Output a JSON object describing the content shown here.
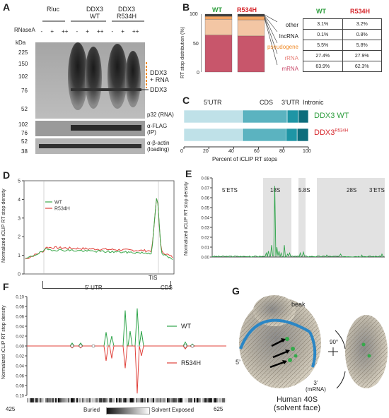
{
  "panels": {
    "A": "A",
    "B": "B",
    "C": "C",
    "D": "D",
    "E": "E",
    "F": "F",
    "G": "G"
  },
  "panelA": {
    "lanes": [
      "Rluc",
      "DDX3\nWT",
      "DDX3\nR534H"
    ],
    "lane_1": "Rluc",
    "lane_2a": "DDX3",
    "lane_2b": "WT",
    "lane_3a": "DDX3",
    "lane_3b": "R534H",
    "rnase_label": "RNaseA",
    "rnase_marks": [
      "-",
      "+",
      "++",
      "-",
      "+",
      "++",
      "-",
      "+",
      "++"
    ],
    "kda": "kDa",
    "markers_top": [
      "225",
      "150",
      "102",
      "76",
      "52"
    ],
    "markers_mid": [
      "102",
      "76"
    ],
    "markers_bot": [
      "52",
      "38"
    ],
    "right_labels": {
      "ddx3_rna_a": "DDX3",
      "ddx3_rna_b": "+ RNA",
      "ddx3": "DDX3",
      "p32": "p32 (RNA)",
      "flag_a": "α-FLAG",
      "flag_b": "(IP)",
      "actin_a": "α-β-actin",
      "actin_b": "(loading)"
    }
  },
  "panelB": {
    "ylabel": "RT stop distribution (%)",
    "wt": "WT",
    "mut": "R534H",
    "yticks": [
      "100",
      "50",
      "0"
    ],
    "categories": [
      "other",
      "lncRNA",
      "pseudogene",
      "rRNA",
      "mRNA"
    ],
    "table_header": [
      "WT",
      "R534H"
    ],
    "rows": [
      {
        "label": "other",
        "wt": "3.1%",
        "mut": "3.2%"
      },
      {
        "label": "lncRNA",
        "wt": "0.1%",
        "mut": "0.8%"
      },
      {
        "label": "pseudogene",
        "wt": "5.5%",
        "mut": "5.8%"
      },
      {
        "label": "rRNA",
        "wt": "27.4%",
        "mut": "27.9%"
      },
      {
        "label": "mRNA",
        "wt": "63.9%",
        "mut": "62.3%"
      }
    ],
    "colors": {
      "other": "#3d3d3d",
      "lncRNA": "#222222",
      "pseudogene": "#f4a460",
      "rRNA": "#f3c6a4",
      "mRNA": "#c8566b"
    }
  },
  "panelC": {
    "regions": [
      "5’UTR",
      "CDS",
      "3’UTR",
      "Intronic"
    ],
    "xlabel": "Percent of iCLIP RT stops",
    "xticks": [
      "0",
      "20",
      "40",
      "60",
      "80",
      "100"
    ],
    "wt_label": "DDX3 WT",
    "mut_label_a": "DDX3",
    "mut_label_b": "R534H",
    "colors": {
      "utr5": "#bfe1e8",
      "cds": "#5bb3c0",
      "utr3": "#1e95a5",
      "intronic": "#0d6d7c"
    }
  },
  "panelD": {
    "ylabel": "Normalized iCLIP RT stop density",
    "yticks": [
      "0",
      "1",
      "2",
      "3",
      "4",
      "5"
    ],
    "legend": [
      "WT",
      "R534H"
    ],
    "xlabels": {
      "utr5": "5’ UTR",
      "tis": "TIS",
      "cds": "CDS"
    }
  },
  "panelE": {
    "ylabel": "Normalized iCLIP RT stop density",
    "yticks": [
      "0.00",
      "0.01",
      "0.02",
      "0.03",
      "0.04",
      "0.05",
      "0.06",
      "0.07",
      "0.08"
    ],
    "regions": [
      "5’ETS",
      "18S",
      "5.8S",
      "28S",
      "3’ETS"
    ]
  },
  "panelF": {
    "ylabel": "Normalized iCLIP RT stop density",
    "yticks_top": [
      "0.10",
      "0.08",
      "0.06",
      "0.04",
      "0.02",
      "0.00"
    ],
    "yticks_bot": [
      "0.02",
      "0.04",
      "0.06",
      "0.08",
      "0.10"
    ],
    "legend": [
      "WT",
      "R534H"
    ],
    "x_start": "425",
    "x_end": "625",
    "buried": "Buried",
    "exposed": "Solvent Exposed"
  },
  "panelG": {
    "beak": "beak",
    "five": "5’",
    "three_a": "3’",
    "three_b": "(mRNA)",
    "rot": "90°",
    "title_a": "Human 40S",
    "title_b": "(solvent face)"
  },
  "chart_data": [
    {
      "type": "bar",
      "title": "",
      "ylabel": "RT stop distribution (%)",
      "categories": [
        "WT",
        "R534H"
      ],
      "series": [
        {
          "name": "mRNA",
          "values": [
            63.9,
            62.3
          ]
        },
        {
          "name": "rRNA",
          "values": [
            27.4,
            27.9
          ]
        },
        {
          "name": "pseudogene",
          "values": [
            5.5,
            5.8
          ]
        },
        {
          "name": "lncRNA",
          "values": [
            0.1,
            0.8
          ]
        },
        {
          "name": "other",
          "values": [
            3.1,
            3.2
          ]
        }
      ],
      "ylim": [
        0,
        100
      ]
    },
    {
      "type": "bar",
      "xlabel": "Percent of iCLIP RT stops",
      "categories": [
        "DDX3 WT",
        "DDX3 R534H"
      ],
      "series": [
        {
          "name": "5’UTR",
          "values": [
            47,
            47
          ]
        },
        {
          "name": "CDS",
          "values": [
            36,
            35
          ]
        },
        {
          "name": "3’UTR",
          "values": [
            9,
            9
          ]
        },
        {
          "name": "Intronic",
          "values": [
            8,
            9
          ]
        }
      ],
      "xlim": [
        0,
        100
      ]
    },
    {
      "type": "line",
      "ylabel": "Normalized iCLIP RT stop density",
      "ylim": [
        0,
        5
      ],
      "series": [
        {
          "name": "WT"
        },
        {
          "name": "R534H"
        }
      ]
    },
    {
      "type": "line",
      "ylabel": "Normalized iCLIP RT stop density",
      "ylim": [
        0,
        0.08
      ],
      "peak": 0.072
    },
    {
      "type": "line",
      "ylabel": "Normalized iCLIP RT stop density",
      "xlim": [
        425,
        625
      ],
      "ylim": [
        -0.1,
        0.1
      ],
      "series": [
        {
          "name": "WT"
        },
        {
          "name": "R534H"
        }
      ]
    }
  ]
}
